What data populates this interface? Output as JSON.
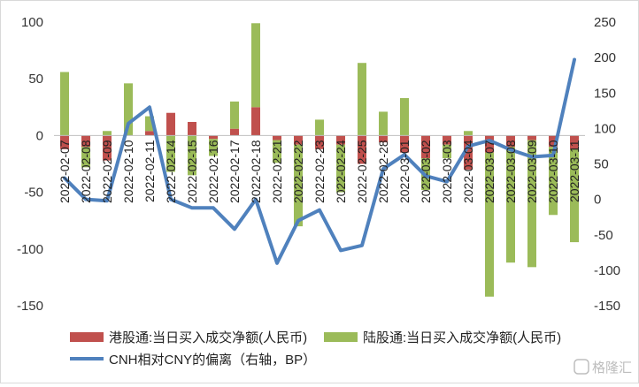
{
  "chart_data": {
    "type": "bar",
    "categories": [
      "2022-02-07",
      "2022-02-08",
      "2022-02-09",
      "2022-02-10",
      "2022-02-11",
      "2022-02-14",
      "2022-02-15",
      "2022-02-16",
      "2022-02-17",
      "2022-02-18",
      "2022-02-21",
      "2022-02-22",
      "2022-02-23",
      "2022-02-24",
      "2022-02-25",
      "2022-02-28",
      "2022-03-01",
      "2022-03-02",
      "2022-03-03",
      "2022-03-04",
      "2022-03-07",
      "2022-03-08",
      "2022-03-09",
      "2022-03-10",
      "2022-03-11"
    ],
    "left_axis": {
      "ylim": [
        -150,
        100
      ],
      "ticks": [
        100,
        50,
        0,
        -50,
        -100,
        -150
      ]
    },
    "right_axis": {
      "ylim": [
        -150,
        250
      ],
      "ticks": [
        250,
        200,
        150,
        100,
        50,
        0,
        -50,
        -100,
        -150
      ]
    },
    "series": [
      {
        "name": "港股通:当日买入成交净额(人民币)",
        "kind": "bar",
        "axis": "left",
        "color": "#c0504d",
        "values": [
          -12,
          -10,
          -22,
          0,
          4,
          20,
          12,
          -3,
          6,
          25,
          -4,
          -8,
          -12,
          -8,
          -25,
          -6,
          -15,
          -20,
          -8,
          -30,
          -15,
          -10,
          -4,
          -10,
          -12
        ]
      },
      {
        "name": "陆股通:当日买入成交净额(人民币)",
        "kind": "bar",
        "axis": "left",
        "color": "#9bbb59",
        "values": [
          56,
          -18,
          4,
          46,
          13,
          -32,
          -35,
          -15,
          24,
          74,
          -20,
          -72,
          14,
          -42,
          64,
          21,
          33,
          -28,
          -12,
          4,
          -127,
          -102,
          -112,
          -60,
          -82
        ]
      },
      {
        "name": "CNH相对CNY的偏离（右轴，BP）",
        "kind": "line",
        "axis": "right",
        "color": "#4f81bd",
        "values": [
          30,
          0,
          -2,
          107,
          130,
          0,
          -12,
          -12,
          -42,
          0,
          -90,
          -30,
          -15,
          -72,
          -65,
          43,
          63,
          33,
          25,
          75,
          83,
          70,
          60,
          62,
          197
        ]
      }
    ],
    "legend_position": "bottom",
    "grid": false
  },
  "watermark": "格隆汇"
}
